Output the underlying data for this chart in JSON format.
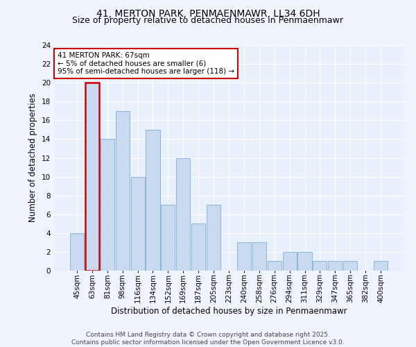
{
  "title1": "41, MERTON PARK, PENMAENMAWR, LL34 6DH",
  "title2": "Size of property relative to detached houses in Penmaenmawr",
  "xlabel": "Distribution of detached houses by size in Penmaenmawr",
  "ylabel": "Number of detached properties",
  "categories": [
    "45sqm",
    "63sqm",
    "81sqm",
    "98sqm",
    "116sqm",
    "134sqm",
    "152sqm",
    "169sqm",
    "187sqm",
    "205sqm",
    "223sqm",
    "240sqm",
    "258sqm",
    "276sqm",
    "294sqm",
    "311sqm",
    "329sqm",
    "347sqm",
    "365sqm",
    "382sqm",
    "400sqm"
  ],
  "values": [
    4,
    20,
    14,
    17,
    10,
    15,
    7,
    12,
    5,
    7,
    0,
    3,
    3,
    1,
    2,
    2,
    1,
    1,
    1,
    0,
    1
  ],
  "bar_color": "#c8d9f0",
  "bar_edge_color": "#7bafd4",
  "highlight_bar_index": 1,
  "highlight_bar_edge_color": "#cc0000",
  "annotation_text": "41 MERTON PARK: 67sqm\n← 5% of detached houses are smaller (6)\n95% of semi-detached houses are larger (118) →",
  "annotation_box_facecolor": "#ffffff",
  "annotation_box_edgecolor": "#cc0000",
  "ylim": [
    0,
    24
  ],
  "yticks": [
    0,
    2,
    4,
    6,
    8,
    10,
    12,
    14,
    16,
    18,
    20,
    22,
    24
  ],
  "footer": "Contains HM Land Registry data © Crown copyright and database right 2025.\nContains public sector information licensed under the Open Government Licence v3.0.",
  "fig_facecolor": "#f0f4ff",
  "axes_facecolor": "#e8f0fc",
  "grid_color": "#ffffff",
  "title1_fontsize": 10,
  "title2_fontsize": 9,
  "tick_fontsize": 7.5,
  "ylabel_fontsize": 8.5,
  "xlabel_fontsize": 8.5,
  "footer_fontsize": 6.5,
  "annot_fontsize": 7.5
}
